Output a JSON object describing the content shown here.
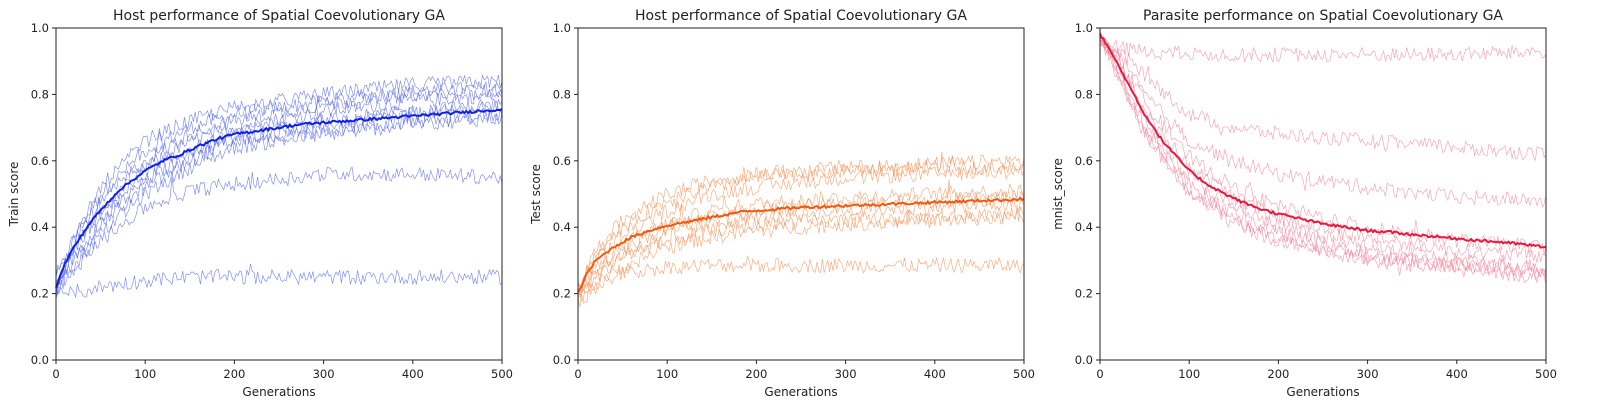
{
  "chart_data": [
    {
      "type": "line",
      "title": "Host performance of Spatial Coevolutionary GA",
      "xlabel": "Generations",
      "ylabel": "Train score",
      "xlim": [
        0,
        500
      ],
      "ylim": [
        0.0,
        1.0
      ],
      "xticks": [
        "0",
        "100",
        "200",
        "300",
        "400",
        "500"
      ],
      "yticks": [
        "0.0",
        "0.2",
        "0.4",
        "0.6",
        "0.8",
        "1.0"
      ],
      "grid": false,
      "colors": {
        "mean": "#1020e0",
        "runs": "#5a6cf5"
      },
      "mean": {
        "x": [
          0,
          10,
          20,
          30,
          40,
          50,
          60,
          70,
          80,
          90,
          100,
          120,
          140,
          160,
          180,
          200,
          225,
          250,
          275,
          300,
          325,
          350,
          375,
          400,
          425,
          450,
          475,
          500
        ],
        "y": [
          0.22,
          0.29,
          0.34,
          0.38,
          0.42,
          0.45,
          0.48,
          0.51,
          0.53,
          0.55,
          0.57,
          0.6,
          0.62,
          0.645,
          0.665,
          0.68,
          0.69,
          0.7,
          0.71,
          0.715,
          0.72,
          0.725,
          0.73,
          0.735,
          0.74,
          0.745,
          0.75,
          0.755
        ]
      },
      "runs": [
        {
          "x": [
            0,
            20,
            50,
            100,
            150,
            200,
            300,
            400,
            500
          ],
          "y": [
            0.24,
            0.37,
            0.5,
            0.63,
            0.7,
            0.74,
            0.78,
            0.81,
            0.82
          ]
        },
        {
          "x": [
            0,
            20,
            50,
            100,
            150,
            200,
            300,
            400,
            500
          ],
          "y": [
            0.21,
            0.33,
            0.45,
            0.58,
            0.66,
            0.7,
            0.75,
            0.78,
            0.8
          ]
        },
        {
          "x": [
            0,
            20,
            50,
            100,
            150,
            200,
            300,
            400,
            500
          ],
          "y": [
            0.23,
            0.31,
            0.42,
            0.54,
            0.62,
            0.67,
            0.71,
            0.74,
            0.76
          ]
        },
        {
          "x": [
            0,
            20,
            50,
            100,
            150,
            200,
            300,
            400,
            500
          ],
          "y": [
            0.2,
            0.28,
            0.38,
            0.5,
            0.58,
            0.64,
            0.68,
            0.71,
            0.73
          ]
        },
        {
          "x": [
            0,
            20,
            50,
            100,
            150,
            200,
            300,
            400,
            500
          ],
          "y": [
            0.22,
            0.35,
            0.52,
            0.66,
            0.72,
            0.76,
            0.8,
            0.83,
            0.84
          ]
        },
        {
          "x": [
            0,
            20,
            50,
            100,
            150,
            200,
            300,
            400,
            500
          ],
          "y": [
            0.25,
            0.34,
            0.44,
            0.56,
            0.63,
            0.68,
            0.72,
            0.75,
            0.77
          ]
        },
        {
          "x": [
            0,
            20,
            50,
            100,
            150,
            200,
            300,
            400,
            500
          ],
          "y": [
            0.2,
            0.3,
            0.41,
            0.52,
            0.6,
            0.66,
            0.69,
            0.72,
            0.74
          ]
        },
        {
          "x": [
            0,
            20,
            50,
            100,
            150,
            200,
            300,
            400,
            500
          ],
          "y": [
            0.21,
            0.36,
            0.48,
            0.6,
            0.68,
            0.72,
            0.77,
            0.8,
            0.81
          ]
        },
        {
          "x": [
            0,
            20,
            50,
            100,
            150,
            200,
            300,
            400,
            500
          ],
          "y": [
            0.22,
            0.27,
            0.36,
            0.46,
            0.51,
            0.53,
            0.56,
            0.56,
            0.55
          ]
        },
        {
          "x": [
            0,
            20,
            50,
            100,
            150,
            200,
            300,
            400,
            500
          ],
          "y": [
            0.2,
            0.2,
            0.22,
            0.24,
            0.25,
            0.25,
            0.25,
            0.25,
            0.25
          ]
        }
      ]
    },
    {
      "type": "line",
      "title": "Host performance of Spatial Coevolutionary GA",
      "xlabel": "Generations",
      "ylabel": "Test score",
      "xlim": [
        0,
        500
      ],
      "ylim": [
        0.0,
        1.0
      ],
      "xticks": [
        "0",
        "100",
        "200",
        "300",
        "400",
        "500"
      ],
      "yticks": [
        "0.0",
        "0.2",
        "0.4",
        "0.6",
        "0.8",
        "1.0"
      ],
      "grid": false,
      "colors": {
        "mean": "#f05a10",
        "runs": "#f7945a"
      },
      "mean": {
        "x": [
          0,
          10,
          20,
          30,
          40,
          50,
          60,
          80,
          100,
          120,
          140,
          160,
          180,
          200,
          225,
          250,
          275,
          300,
          325,
          350,
          375,
          400,
          425,
          450,
          475,
          500
        ],
        "y": [
          0.2,
          0.26,
          0.3,
          0.32,
          0.34,
          0.355,
          0.37,
          0.39,
          0.405,
          0.415,
          0.425,
          0.435,
          0.445,
          0.45,
          0.455,
          0.46,
          0.462,
          0.465,
          0.467,
          0.47,
          0.472,
          0.475,
          0.477,
          0.48,
          0.482,
          0.485
        ]
      },
      "runs": [
        {
          "x": [
            0,
            20,
            50,
            100,
            150,
            200,
            300,
            400,
            500
          ],
          "y": [
            0.22,
            0.33,
            0.42,
            0.5,
            0.54,
            0.56,
            0.58,
            0.59,
            0.6
          ]
        },
        {
          "x": [
            0,
            20,
            50,
            100,
            150,
            200,
            300,
            400,
            500
          ],
          "y": [
            0.2,
            0.3,
            0.38,
            0.45,
            0.5,
            0.52,
            0.55,
            0.56,
            0.57
          ]
        },
        {
          "x": [
            0,
            20,
            50,
            100,
            150,
            200,
            300,
            400,
            500
          ],
          "y": [
            0.19,
            0.28,
            0.35,
            0.41,
            0.45,
            0.47,
            0.49,
            0.5,
            0.51
          ]
        },
        {
          "x": [
            0,
            20,
            50,
            100,
            150,
            200,
            300,
            400,
            500
          ],
          "y": [
            0.21,
            0.26,
            0.32,
            0.38,
            0.41,
            0.43,
            0.45,
            0.46,
            0.47
          ]
        },
        {
          "x": [
            0,
            20,
            50,
            100,
            150,
            200,
            300,
            400,
            500
          ],
          "y": [
            0.18,
            0.25,
            0.31,
            0.36,
            0.39,
            0.41,
            0.42,
            0.43,
            0.44
          ]
        },
        {
          "x": [
            0,
            20,
            50,
            100,
            150,
            200,
            300,
            400,
            500
          ],
          "y": [
            0.23,
            0.32,
            0.4,
            0.48,
            0.52,
            0.55,
            0.57,
            0.58,
            0.58
          ]
        },
        {
          "x": [
            0,
            20,
            50,
            100,
            150,
            200,
            300,
            400,
            500
          ],
          "y": [
            0.2,
            0.27,
            0.34,
            0.4,
            0.43,
            0.45,
            0.47,
            0.48,
            0.49
          ]
        },
        {
          "x": [
            0,
            20,
            50,
            100,
            150,
            200,
            300,
            400,
            500
          ],
          "y": [
            0.17,
            0.22,
            0.28,
            0.34,
            0.37,
            0.39,
            0.41,
            0.42,
            0.43
          ]
        },
        {
          "x": [
            0,
            20,
            50,
            100,
            150,
            200,
            300,
            400,
            500
          ],
          "y": [
            0.2,
            0.23,
            0.26,
            0.28,
            0.285,
            0.285,
            0.285,
            0.285,
            0.285
          ]
        }
      ]
    },
    {
      "type": "line",
      "title": "Parasite performance on Spatial Coevolutionary GA",
      "xlabel": "Generations",
      "ylabel": "mnist_score",
      "xlim": [
        0,
        500
      ],
      "ylim": [
        0.0,
        1.0
      ],
      "xticks": [
        "0",
        "100",
        "200",
        "300",
        "400",
        "500"
      ],
      "yticks": [
        "0.0",
        "0.2",
        "0.4",
        "0.6",
        "0.8",
        "1.0"
      ],
      "grid": false,
      "colors": {
        "mean": "#e8183e",
        "runs": "#f58aa0"
      },
      "mean": {
        "x": [
          0,
          10,
          20,
          30,
          40,
          50,
          60,
          70,
          80,
          90,
          100,
          120,
          140,
          160,
          180,
          200,
          225,
          250,
          275,
          300,
          325,
          350,
          375,
          400,
          425,
          450,
          475,
          500
        ],
        "y": [
          0.98,
          0.94,
          0.89,
          0.84,
          0.79,
          0.74,
          0.7,
          0.66,
          0.63,
          0.6,
          0.57,
          0.53,
          0.5,
          0.475,
          0.455,
          0.44,
          0.425,
          0.41,
          0.4,
          0.39,
          0.385,
          0.378,
          0.372,
          0.366,
          0.36,
          0.355,
          0.348,
          0.34
        ]
      },
      "runs": [
        {
          "x": [
            0,
            20,
            50,
            100,
            150,
            200,
            300,
            400,
            500
          ],
          "y": [
            0.97,
            0.88,
            0.72,
            0.55,
            0.46,
            0.4,
            0.34,
            0.3,
            0.28
          ]
        },
        {
          "x": [
            0,
            20,
            50,
            100,
            150,
            200,
            300,
            400,
            500
          ],
          "y": [
            0.98,
            0.86,
            0.7,
            0.53,
            0.44,
            0.38,
            0.32,
            0.28,
            0.26
          ]
        },
        {
          "x": [
            0,
            20,
            50,
            100,
            150,
            200,
            300,
            400,
            500
          ],
          "y": [
            0.96,
            0.9,
            0.75,
            0.58,
            0.49,
            0.43,
            0.37,
            0.33,
            0.31
          ]
        },
        {
          "x": [
            0,
            20,
            50,
            100,
            150,
            200,
            300,
            400,
            500
          ],
          "y": [
            0.99,
            0.87,
            0.69,
            0.51,
            0.42,
            0.36,
            0.3,
            0.27,
            0.25
          ]
        },
        {
          "x": [
            0,
            20,
            50,
            100,
            150,
            200,
            300,
            400,
            500
          ],
          "y": [
            0.97,
            0.91,
            0.78,
            0.61,
            0.52,
            0.46,
            0.4,
            0.36,
            0.34
          ]
        },
        {
          "x": [
            0,
            20,
            50,
            100,
            150,
            200,
            300,
            400,
            500
          ],
          "y": [
            0.98,
            0.85,
            0.68,
            0.5,
            0.41,
            0.36,
            0.31,
            0.29,
            0.27
          ]
        },
        {
          "x": [
            0,
            20,
            50,
            100,
            150,
            200,
            300,
            400,
            500
          ],
          "y": [
            0.96,
            0.92,
            0.8,
            0.66,
            0.6,
            0.56,
            0.52,
            0.49,
            0.48
          ]
        },
        {
          "x": [
            0,
            20,
            50,
            100,
            150,
            200,
            300,
            400,
            500
          ],
          "y": [
            0.97,
            0.93,
            0.86,
            0.74,
            0.7,
            0.68,
            0.66,
            0.64,
            0.62
          ]
        },
        {
          "x": [
            0,
            20,
            50,
            100,
            150,
            200,
            300,
            400,
            500
          ],
          "y": [
            0.96,
            0.94,
            0.93,
            0.92,
            0.92,
            0.92,
            0.92,
            0.92,
            0.93
          ]
        }
      ]
    }
  ]
}
